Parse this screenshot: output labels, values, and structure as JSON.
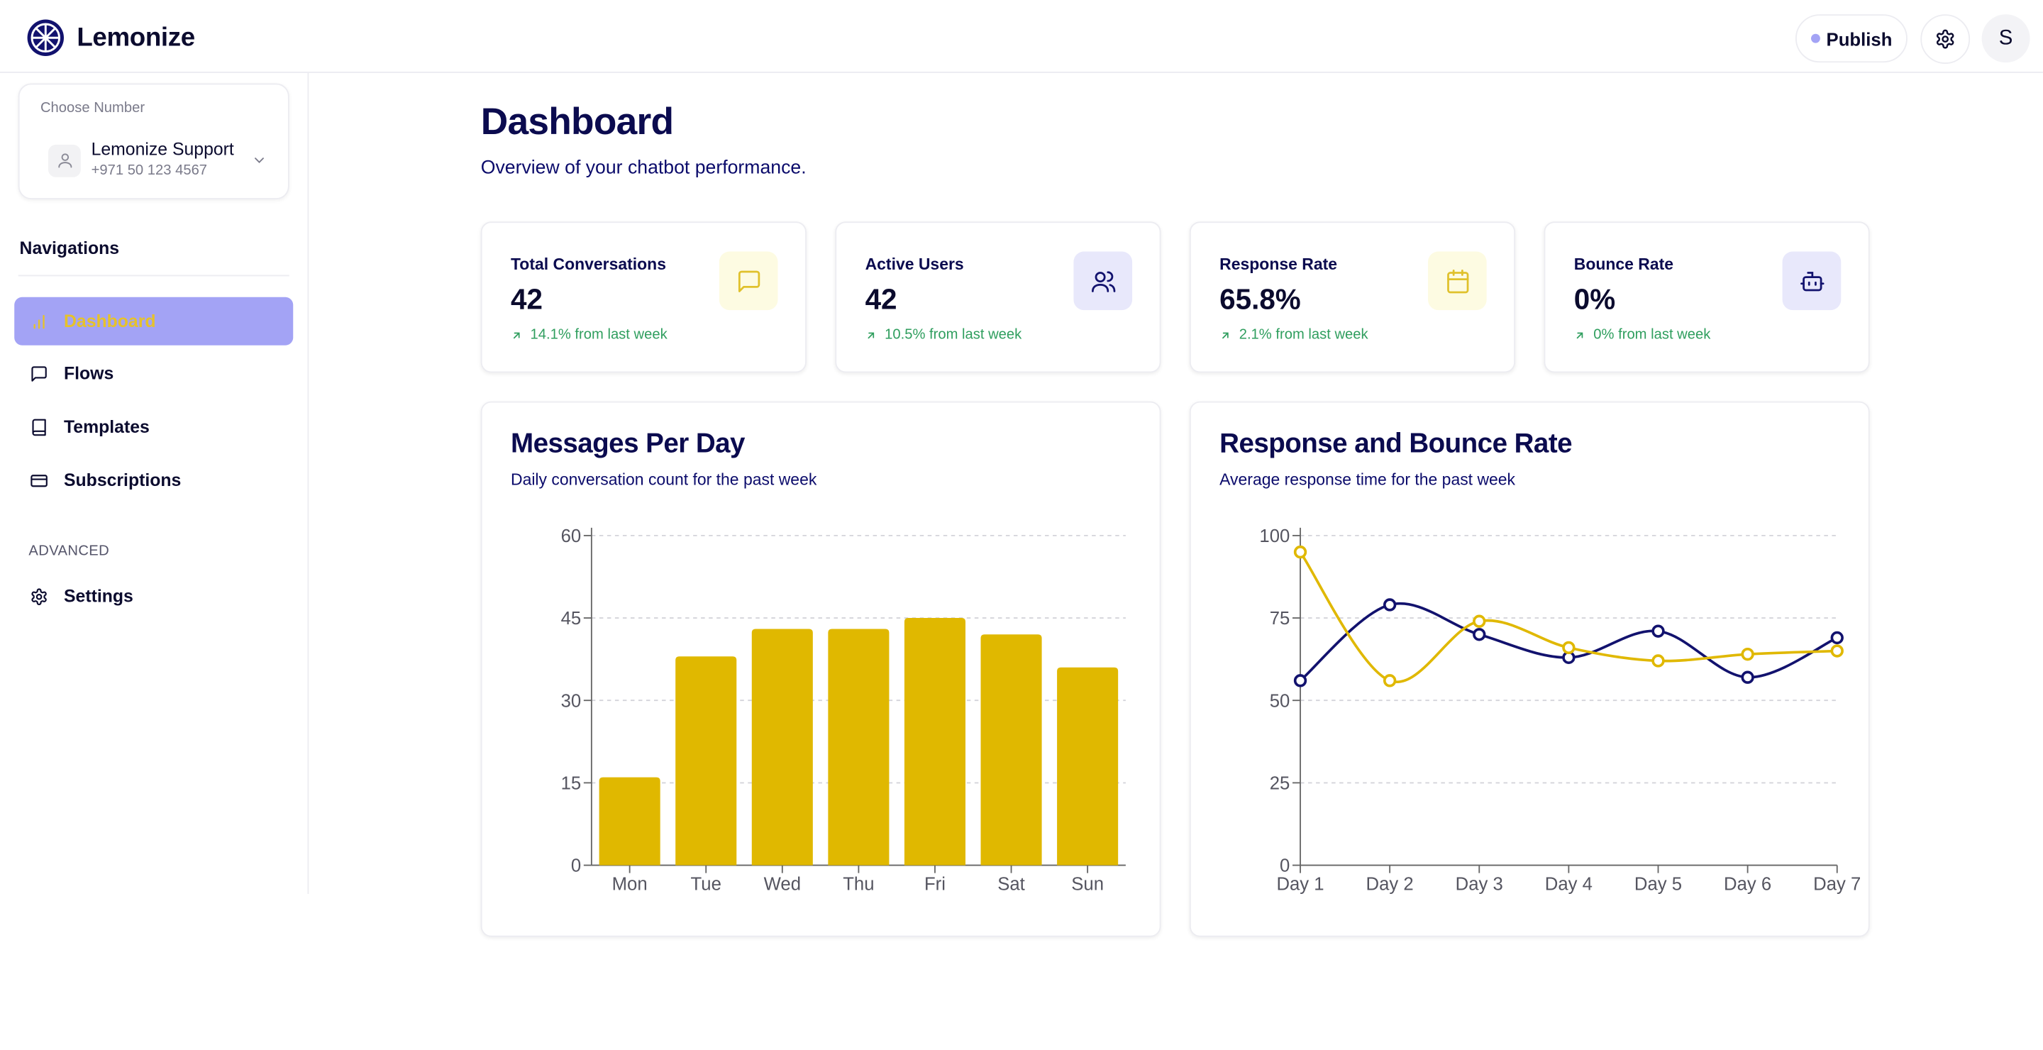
{
  "header": {
    "brand": "Lemonize",
    "publish_label": "Publish",
    "avatar_initial": "S"
  },
  "sidebar": {
    "number_caption": "Choose Number",
    "number_name": "Lemonize Support",
    "number_phone": "+971 50 123 4567",
    "nav_heading": "Navigations",
    "items": [
      {
        "label": "Dashboard",
        "icon": "bar-chart-icon"
      },
      {
        "label": "Flows",
        "icon": "message-square-icon"
      },
      {
        "label": "Templates",
        "icon": "book-icon"
      },
      {
        "label": "Subscriptions",
        "icon": "credit-card-icon"
      }
    ],
    "advanced_heading": "ADVANCED",
    "settings_label": "Settings"
  },
  "main": {
    "title": "Dashboard",
    "subtitle": "Overview of your chatbot performance.",
    "stats": [
      {
        "label": "Total Conversations",
        "value": "42",
        "change": "14.1% from last week",
        "icon": "message-square-icon"
      },
      {
        "label": "Active Users",
        "value": "42",
        "change": "10.5% from last week",
        "icon": "users-icon"
      },
      {
        "label": "Response Rate",
        "value": "65.8%",
        "change": "2.1% from last week",
        "icon": "calendar-icon"
      },
      {
        "label": "Bounce Rate",
        "value": "0%",
        "change": "0% from last week",
        "icon": "bot-icon"
      }
    ]
  },
  "colors": {
    "accent_purple": "#a3a3f5",
    "accent_yellow": "#e0b800",
    "navy": "#12126e",
    "positive_green": "#2f9e5e"
  },
  "chart_data": [
    {
      "type": "bar",
      "title": "Messages Per Day",
      "subtitle": "Daily conversation count for the past week",
      "categories": [
        "Mon",
        "Tue",
        "Wed",
        "Thu",
        "Fri",
        "Sat",
        "Sun"
      ],
      "values": [
        16,
        38,
        43,
        43,
        45,
        42,
        36
      ],
      "yticks": [
        0,
        15,
        30,
        45,
        60
      ],
      "ylim": [
        0,
        60
      ],
      "grid": true,
      "color": "#e0b800"
    },
    {
      "type": "line",
      "title": "Response and Bounce Rate",
      "subtitle": "Average response time for the past week",
      "categories": [
        "Day 1",
        "Day 2",
        "Day 3",
        "Day 4",
        "Day 5",
        "Day 6",
        "Day 7"
      ],
      "series": [
        {
          "values": [
            56,
            79,
            70,
            63,
            71,
            57,
            69
          ],
          "color": "#12126e"
        },
        {
          "values": [
            95,
            56,
            74,
            66,
            62,
            64,
            65
          ],
          "color": "#e0b800"
        }
      ],
      "yticks": [
        0,
        25,
        50,
        75,
        100
      ],
      "ylim": [
        0,
        100
      ],
      "grid": true
    }
  ]
}
